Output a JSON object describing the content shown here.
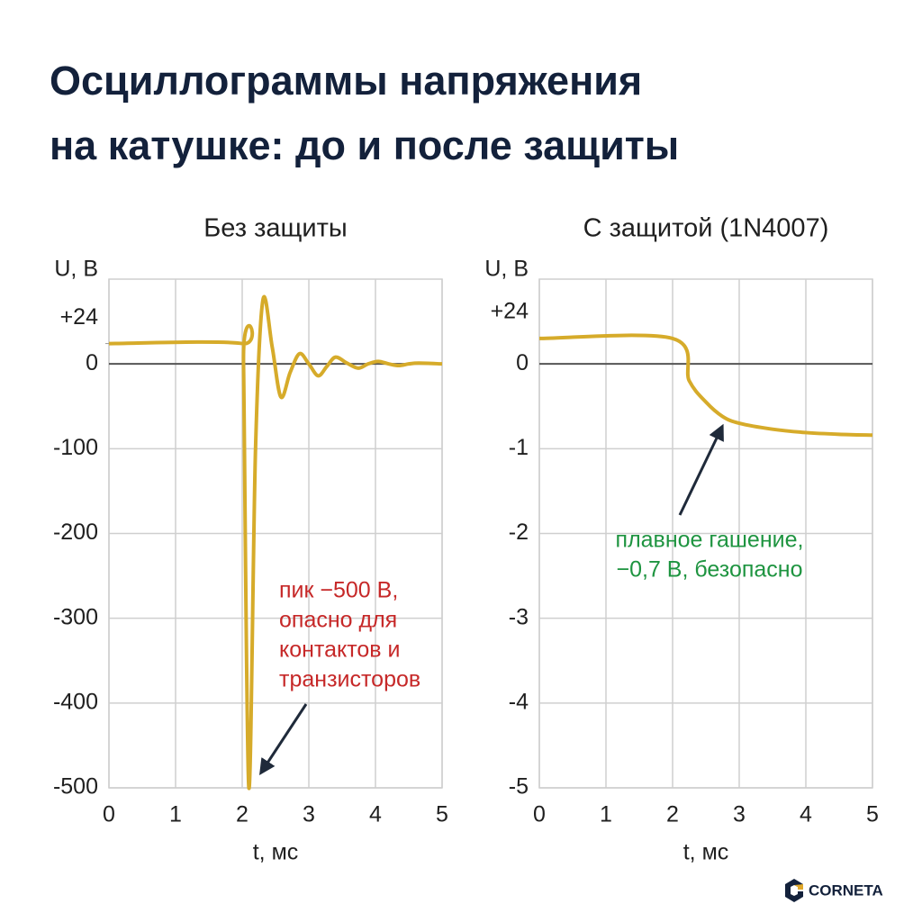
{
  "title": [
    "Осциллограммы напряжения",
    "на катушке: до и после защиты"
  ],
  "brand": "CORNETA",
  "chart_data": [
    {
      "type": "line",
      "title": "Без защиты",
      "xlabel": "t, мс",
      "ylabel": "U, В",
      "xlim": [
        0,
        5
      ],
      "xticks": [
        0,
        1,
        2,
        3,
        4,
        5
      ],
      "ylim": [
        -500,
        100
      ],
      "yticks": [
        {
          "value": 24,
          "label": "+24"
        },
        0,
        -100,
        -200,
        -300,
        -400,
        -500
      ],
      "grid": true,
      "x": [
        0,
        2,
        2.02,
        2.1,
        2.2,
        2.31,
        2.45,
        2.58,
        2.72,
        2.86,
        3.0,
        3.14,
        3.27,
        3.4,
        3.57,
        3.74,
        3.89,
        4.04,
        4.2,
        4.35,
        4.5,
        4.65,
        5
      ],
      "series": [
        {
          "color": "#d6ab2a",
          "values": [
            24,
            24,
            0,
            -500,
            -100,
            75,
            20,
            -39,
            -10,
            12,
            0,
            -14,
            -3,
            8,
            1,
            -5,
            0,
            3,
            0,
            -2,
            0,
            1,
            0
          ]
        }
      ],
      "annotation": {
        "color": "#c62828",
        "lines": [
          "пик −500 В,",
          "опасно для",
          "контактов и",
          "транзисторов"
        ]
      }
    },
    {
      "type": "line",
      "title": "С защитой (1N4007)",
      "xlabel": "t, мс",
      "ylabel": "U, В",
      "upper_label": "+24",
      "xlim": [
        0,
        5
      ],
      "xticks": [
        0,
        1,
        2,
        3,
        4,
        5
      ],
      "ylim": [
        -5,
        1
      ],
      "yticks": [
        0,
        -1,
        -2,
        -3,
        -4,
        -5
      ],
      "grid": true,
      "x": [
        0,
        2,
        2.25,
        2.5,
        2.75,
        3,
        3.5,
        4,
        4.5,
        5
      ],
      "series": [
        {
          "color": "#d6ab2a",
          "values": [
            0.3,
            0.3,
            -0.2,
            -0.45,
            -0.62,
            -0.7,
            -0.77,
            -0.81,
            -0.83,
            -0.84
          ]
        }
      ],
      "annotation": {
        "color": "#1e9440",
        "lines": [
          "плавное гашение,",
          "−0,7 В, безопасно"
        ]
      }
    }
  ]
}
